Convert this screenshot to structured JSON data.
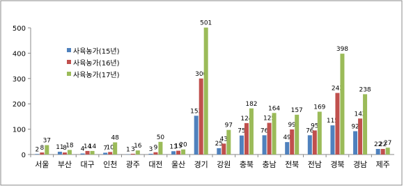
{
  "chart_data": {
    "type": "bar",
    "categories": [
      "서울",
      "부산",
      "대구",
      "인천",
      "광주",
      "대전",
      "울산",
      "경기",
      "강원",
      "충북",
      "충남",
      "전북",
      "전남",
      "경북",
      "경남",
      "제주"
    ],
    "series": [
      {
        "name": "사육농가(15년)",
        "color": "#4f81bd",
        "values": [
          2,
          11,
          4,
          7,
          1,
          3,
          13,
          153,
          25,
          75,
          76,
          49,
          76,
          115,
          92,
          22
        ]
      },
      {
        "name": "사육농가(16년)",
        "color": "#c0504d",
        "values": [
          8,
          8,
          14,
          10,
          3,
          9,
          15,
          300,
          43,
          124,
          125,
          99,
          95,
          243,
          142,
          22
        ]
      },
      {
        "name": "사육농가(17년)",
        "color": "#9bbb59",
        "values": [
          37,
          18,
          14,
          48,
          16,
          50,
          20,
          501,
          97,
          182,
          164,
          157,
          169,
          398,
          238,
          27
        ]
      }
    ],
    "ylim": [
      0,
      500
    ],
    "yticks": [
      0,
      100,
      200,
      300,
      400,
      500
    ],
    "grid": false,
    "legend": "upper left"
  }
}
